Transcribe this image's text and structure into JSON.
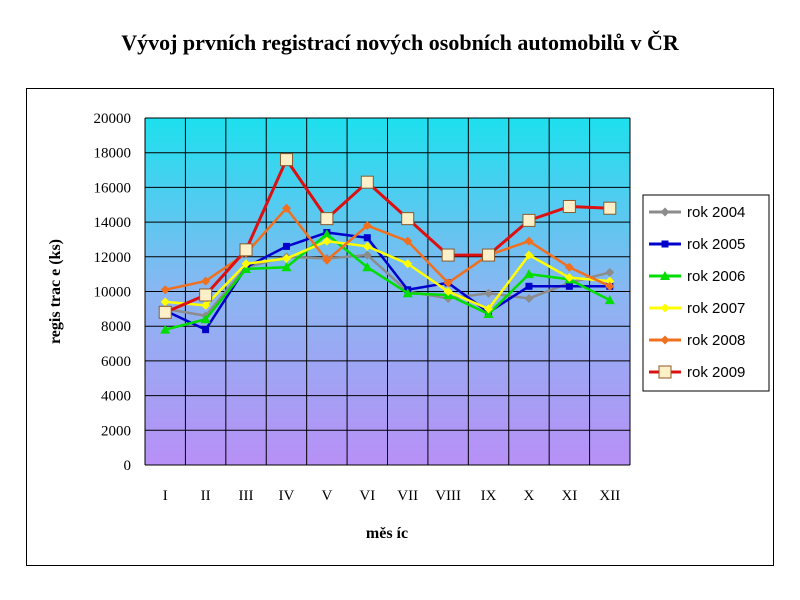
{
  "chart_data": {
    "type": "line",
    "title": "Vývoj prvních registrací nových osobních automobilů v ČR",
    "xlabel": "měs íc",
    "ylabel": "regis trac e (ks)",
    "categories": [
      "I",
      "II",
      "III",
      "IV",
      "V",
      "VI",
      "VII",
      "VIII",
      "IX",
      "X",
      "XI",
      "XII"
    ],
    "y_ticks": [
      "0",
      "2000",
      "4000",
      "6000",
      "8000",
      "10000",
      "12000",
      "14000",
      "16000",
      "18000",
      "20000"
    ],
    "ylim": [
      0,
      20000
    ],
    "grid": true,
    "legend_position": "right",
    "series": [
      {
        "name": "rok 2004",
        "color": "#8c8c8c",
        "marker": "diamond",
        "values": [
          9000,
          8600,
          11400,
          12000,
          11900,
          12100,
          10000,
          9600,
          9900,
          9600,
          10500,
          11100
        ]
      },
      {
        "name": "rok 2005",
        "color": "#0000cc",
        "marker": "square",
        "values": [
          8900,
          7800,
          11400,
          12600,
          13400,
          13100,
          10100,
          10500,
          8800,
          10300,
          10300,
          10300
        ]
      },
      {
        "name": "rok 2006",
        "color": "#00dd00",
        "marker": "triangle",
        "values": [
          7800,
          8400,
          11300,
          11400,
          13300,
          11400,
          9900,
          9800,
          8700,
          11000,
          10700,
          9500
        ]
      },
      {
        "name": "rok 2007",
        "color": "#ffff00",
        "marker": "diamond",
        "values": [
          9400,
          9200,
          11600,
          11900,
          12900,
          12600,
          11600,
          10000,
          9000,
          12100,
          10800,
          10600
        ]
      },
      {
        "name": "rok 2008",
        "color": "#f07020",
        "marker": "diamond",
        "values": [
          10100,
          10600,
          12200,
          14800,
          11800,
          13800,
          12900,
          10500,
          12100,
          12900,
          11400,
          10300
        ]
      },
      {
        "name": "rok 2009",
        "color": "#dd1010",
        "marker": "open-square",
        "values": [
          8800,
          9800,
          12400,
          17600,
          14200,
          16300,
          14200,
          12100,
          12100,
          14100,
          14900,
          14800
        ]
      }
    ]
  }
}
